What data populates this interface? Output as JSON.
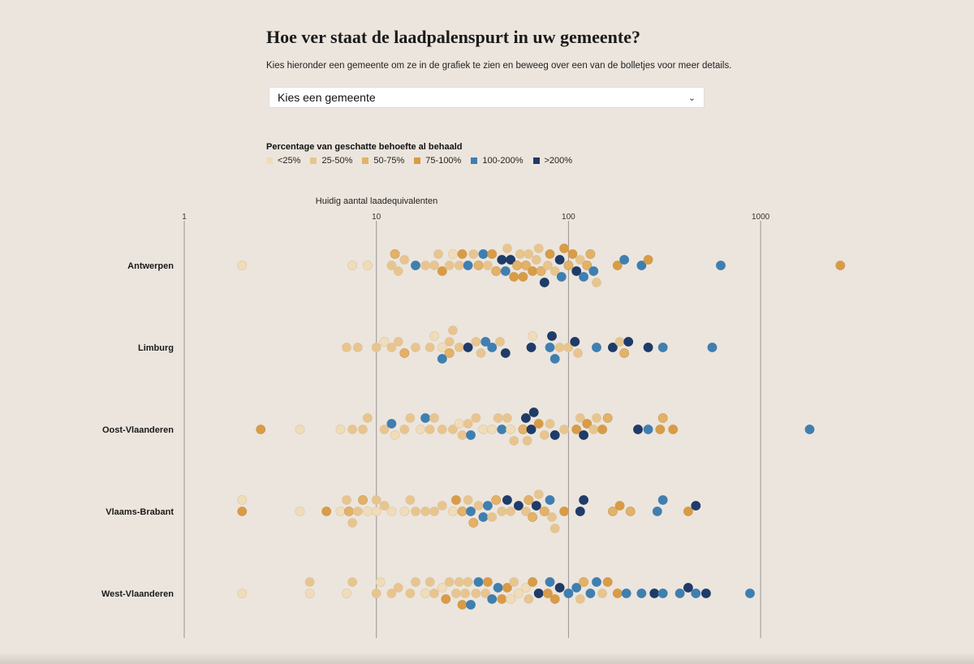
{
  "header": {
    "title": "Hoe ver staat de laadpalenspurt in uw gemeente?",
    "subtitle": "Kies hieronder een gemeente om ze in de grafiek te zien en beweeg over een van de bolletjes voor meer details."
  },
  "select": {
    "value": "Kies een gemeente"
  },
  "legend": {
    "title": "Percentage van geschatte behoefte al behaald",
    "items": [
      {
        "label": "<25%",
        "color": "#f0dcb8"
      },
      {
        "label": "25-50%",
        "color": "#e8c48e"
      },
      {
        "label": "50-75%",
        "color": "#e3b268"
      },
      {
        "label": "75-100%",
        "color": "#d99b45"
      },
      {
        "label": "100-200%",
        "color": "#3f7fb0"
      },
      {
        "label": ">200%",
        "color": "#1f3b68"
      }
    ]
  },
  "chart_data": {
    "type": "beeswarm",
    "scale": "log",
    "xlabel": "Huidig aantal laadequivalenten",
    "xticks": [
      1,
      10,
      100,
      1000
    ],
    "xtick_labels": [
      "1",
      "10",
      "100",
      "1000"
    ],
    "xlim": [
      1,
      3000
    ],
    "categories": [
      "Antwerpen",
      "Limburg",
      "Oost-Vlaanderen",
      "Vlaams-Brabant",
      "West-Vlaanderen"
    ],
    "series": [
      {
        "name": "Antwerpen",
        "points": [
          [
            2,
            0
          ],
          [
            7.5,
            0
          ],
          [
            9,
            0
          ],
          [
            12,
            1
          ],
          [
            12.5,
            2
          ],
          [
            13,
            1
          ],
          [
            14,
            1
          ],
          [
            16,
            4
          ],
          [
            18,
            1
          ],
          [
            20,
            1
          ],
          [
            21,
            1
          ],
          [
            22,
            3
          ],
          [
            24,
            1
          ],
          [
            25,
            0
          ],
          [
            27,
            1
          ],
          [
            28,
            3
          ],
          [
            30,
            4
          ],
          [
            32,
            1
          ],
          [
            34,
            2
          ],
          [
            36,
            4
          ],
          [
            38,
            1
          ],
          [
            40,
            3
          ],
          [
            42,
            2
          ],
          [
            45,
            5
          ],
          [
            47,
            4
          ],
          [
            48,
            1
          ],
          [
            50,
            5
          ],
          [
            52,
            3
          ],
          [
            54,
            2
          ],
          [
            56,
            1
          ],
          [
            58,
            3
          ],
          [
            60,
            2
          ],
          [
            62,
            1
          ],
          [
            65,
            3
          ],
          [
            68,
            1
          ],
          [
            70,
            1
          ],
          [
            72,
            2
          ],
          [
            75,
            5
          ],
          [
            78,
            1
          ],
          [
            80,
            3
          ],
          [
            85,
            1
          ],
          [
            90,
            5
          ],
          [
            92,
            4
          ],
          [
            95,
            3
          ],
          [
            100,
            2
          ],
          [
            105,
            3
          ],
          [
            110,
            5
          ],
          [
            115,
            1
          ],
          [
            120,
            4
          ],
          [
            125,
            2
          ],
          [
            130,
            2
          ],
          [
            135,
            4
          ],
          [
            140,
            1
          ],
          [
            180,
            3
          ],
          [
            195,
            4
          ],
          [
            240,
            4
          ],
          [
            260,
            3
          ],
          [
            620,
            4
          ],
          [
            2600,
            3
          ]
        ]
      },
      {
        "name": "Limburg",
        "points": [
          [
            7,
            1
          ],
          [
            8,
            1
          ],
          [
            10,
            1
          ],
          [
            11,
            0
          ],
          [
            12,
            1
          ],
          [
            13,
            1
          ],
          [
            14,
            2
          ],
          [
            16,
            1
          ],
          [
            19,
            1
          ],
          [
            20,
            0
          ],
          [
            22,
            0
          ],
          [
            24,
            1
          ],
          [
            22,
            4
          ],
          [
            24,
            2
          ],
          [
            25,
            1
          ],
          [
            27,
            1
          ],
          [
            30,
            5
          ],
          [
            33,
            1
          ],
          [
            35,
            1
          ],
          [
            37,
            4
          ],
          [
            40,
            4
          ],
          [
            44,
            1
          ],
          [
            47,
            5
          ],
          [
            65,
            0
          ],
          [
            64,
            5
          ],
          [
            80,
            4
          ],
          [
            82,
            5
          ],
          [
            85,
            4
          ],
          [
            90,
            1
          ],
          [
            100,
            1
          ],
          [
            108,
            5
          ],
          [
            112,
            1
          ],
          [
            140,
            4
          ],
          [
            170,
            5
          ],
          [
            185,
            1
          ],
          [
            195,
            2
          ],
          [
            205,
            5
          ],
          [
            260,
            5
          ],
          [
            310,
            4
          ],
          [
            560,
            4
          ]
        ]
      },
      {
        "name": "Oost-Vlaanderen",
        "points": [
          [
            2.5,
            3
          ],
          [
            4,
            0
          ],
          [
            6.5,
            0
          ],
          [
            7.5,
            1
          ],
          [
            8.5,
            1
          ],
          [
            9,
            1
          ],
          [
            11,
            1
          ],
          [
            12,
            4
          ],
          [
            12.5,
            0
          ],
          [
            14,
            1
          ],
          [
            15,
            1
          ],
          [
            17,
            0
          ],
          [
            18,
            4
          ],
          [
            19,
            1
          ],
          [
            20,
            1
          ],
          [
            22,
            1
          ],
          [
            25,
            1
          ],
          [
            27,
            0
          ],
          [
            28,
            1
          ],
          [
            30,
            1
          ],
          [
            31,
            4
          ],
          [
            33,
            1
          ],
          [
            36,
            0
          ],
          [
            40,
            0
          ],
          [
            43,
            1
          ],
          [
            45,
            4
          ],
          [
            48,
            1
          ],
          [
            50,
            0
          ],
          [
            52,
            1
          ],
          [
            58,
            2
          ],
          [
            60,
            5
          ],
          [
            61,
            1
          ],
          [
            64,
            5
          ],
          [
            66,
            5
          ],
          [
            70,
            3
          ],
          [
            75,
            1
          ],
          [
            80,
            1
          ],
          [
            85,
            5
          ],
          [
            95,
            1
          ],
          [
            110,
            3
          ],
          [
            115,
            1
          ],
          [
            120,
            5
          ],
          [
            125,
            3
          ],
          [
            135,
            1
          ],
          [
            140,
            1
          ],
          [
            150,
            3
          ],
          [
            160,
            2
          ],
          [
            230,
            5
          ],
          [
            260,
            4
          ],
          [
            300,
            3
          ],
          [
            310,
            2
          ],
          [
            350,
            3
          ],
          [
            1800,
            4
          ]
        ]
      },
      {
        "name": "Vlaams-Brabant",
        "points": [
          [
            2,
            3
          ],
          [
            2,
            0
          ],
          [
            4,
            0
          ],
          [
            5.5,
            3
          ],
          [
            6.5,
            0
          ],
          [
            7,
            1
          ],
          [
            7.2,
            2
          ],
          [
            7.5,
            1
          ],
          [
            8,
            1
          ],
          [
            8.5,
            2
          ],
          [
            9,
            0
          ],
          [
            10,
            0
          ],
          [
            10,
            1
          ],
          [
            11,
            1
          ],
          [
            12,
            0
          ],
          [
            14,
            0
          ],
          [
            15,
            1
          ],
          [
            16,
            1
          ],
          [
            18,
            1
          ],
          [
            20,
            1
          ],
          [
            22,
            1
          ],
          [
            25,
            0
          ],
          [
            26,
            3
          ],
          [
            28,
            2
          ],
          [
            30,
            1
          ],
          [
            31,
            4
          ],
          [
            32,
            2
          ],
          [
            34,
            1
          ],
          [
            36,
            4
          ],
          [
            38,
            4
          ],
          [
            40,
            1
          ],
          [
            42,
            2
          ],
          [
            45,
            1
          ],
          [
            48,
            5
          ],
          [
            50,
            1
          ],
          [
            55,
            5
          ],
          [
            60,
            1
          ],
          [
            62,
            2
          ],
          [
            65,
            2
          ],
          [
            68,
            5
          ],
          [
            70,
            1
          ],
          [
            75,
            2
          ],
          [
            80,
            4
          ],
          [
            82,
            1
          ],
          [
            85,
            1
          ],
          [
            95,
            3
          ],
          [
            115,
            5
          ],
          [
            120,
            5
          ],
          [
            170,
            2
          ],
          [
            185,
            3
          ],
          [
            210,
            2
          ],
          [
            290,
            4
          ],
          [
            310,
            4
          ],
          [
            420,
            3
          ],
          [
            460,
            5
          ]
        ]
      },
      {
        "name": "West-Vlaanderen",
        "points": [
          [
            2,
            0
          ],
          [
            4.5,
            0
          ],
          [
            4.5,
            1
          ],
          [
            7,
            0
          ],
          [
            7.5,
            1
          ],
          [
            10,
            1
          ],
          [
            10.5,
            0
          ],
          [
            12,
            1
          ],
          [
            13,
            1
          ],
          [
            15,
            1
          ],
          [
            16,
            1
          ],
          [
            18,
            0
          ],
          [
            19,
            1
          ],
          [
            20,
            1
          ],
          [
            22,
            0
          ],
          [
            23,
            3
          ],
          [
            24,
            1
          ],
          [
            26,
            1
          ],
          [
            27,
            1
          ],
          [
            28,
            3
          ],
          [
            29,
            1
          ],
          [
            30,
            1
          ],
          [
            31,
            4
          ],
          [
            33,
            1
          ],
          [
            34,
            4
          ],
          [
            37,
            1
          ],
          [
            38,
            3
          ],
          [
            40,
            4
          ],
          [
            43,
            4
          ],
          [
            45,
            3
          ],
          [
            48,
            3
          ],
          [
            50,
            0
          ],
          [
            52,
            1
          ],
          [
            55,
            0
          ],
          [
            60,
            0
          ],
          [
            62,
            1
          ],
          [
            65,
            3
          ],
          [
            70,
            5
          ],
          [
            78,
            3
          ],
          [
            80,
            4
          ],
          [
            85,
            3
          ],
          [
            90,
            5
          ],
          [
            100,
            4
          ],
          [
            110,
            4
          ],
          [
            115,
            1
          ],
          [
            120,
            2
          ],
          [
            130,
            4
          ],
          [
            140,
            4
          ],
          [
            150,
            1
          ],
          [
            160,
            3
          ],
          [
            180,
            3
          ],
          [
            200,
            4
          ],
          [
            240,
            4
          ],
          [
            280,
            5
          ],
          [
            310,
            4
          ],
          [
            380,
            4
          ],
          [
            420,
            5
          ],
          [
            460,
            4
          ],
          [
            520,
            5
          ],
          [
            880,
            4
          ]
        ]
      }
    ]
  }
}
